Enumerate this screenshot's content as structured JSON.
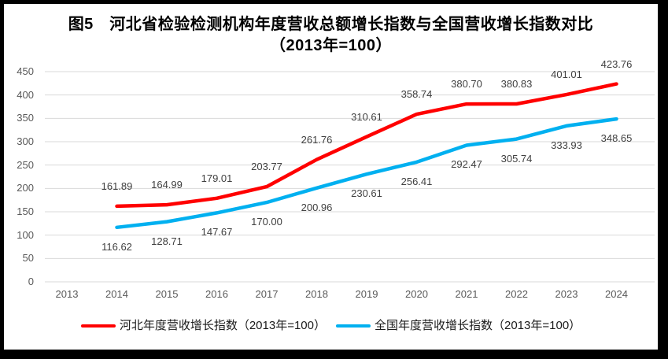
{
  "chart_data": {
    "type": "line",
    "title": "图5　河北省检验检测机构年度营收总额增长指数与全国营收增长指数对比",
    "subtitle": "（2013年=100）",
    "categories": [
      "2013",
      "2014",
      "2015",
      "2016",
      "2017",
      "2018",
      "2019",
      "2020",
      "2021",
      "2022",
      "2023",
      "2024"
    ],
    "series": [
      {
        "name": "河北年度营收增长指数（2013年=100）",
        "color": "#ff0000",
        "label_position": "above",
        "values": [
          null,
          "161.89",
          "164.99",
          "179.01",
          "203.77",
          "261.76",
          "310.61",
          "358.74",
          "380.70",
          "380.83",
          "401.01",
          "423.76"
        ]
      },
      {
        "name": "全国年度营收增长指数（2013年=100）",
        "color": "#00b0f0",
        "label_position": "below",
        "values": [
          null,
          "116.62",
          "128.71",
          "147.67",
          "170.00",
          "200.96",
          "230.61",
          "256.41",
          "292.47",
          "305.74",
          "333.93",
          "348.65"
        ]
      }
    ],
    "y_axis": {
      "min": 0,
      "max": 450,
      "step": 50,
      "tick_labels": [
        "0",
        "50",
        "100",
        "150",
        "200",
        "250",
        "300",
        "350",
        "400",
        "450"
      ]
    },
    "grid": true,
    "legend_position": "bottom",
    "colors": {
      "background": "#ffffff",
      "frame_border": "#000000",
      "gridline": "#d9d9d9",
      "axis_text": "#595959",
      "data_label_text": "#404040",
      "title_text": "#000000",
      "legend_text": "#1a1a1a"
    }
  }
}
